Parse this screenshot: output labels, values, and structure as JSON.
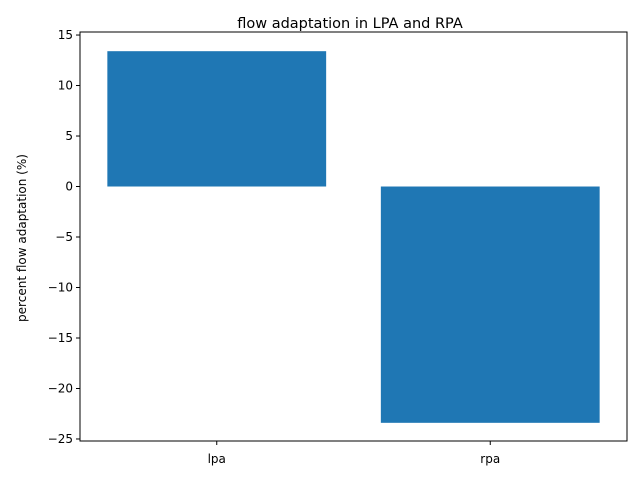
{
  "chart_data": {
    "type": "bar",
    "title": "flow adaptation in LPA and RPA",
    "xlabel": "",
    "ylabel": "percent flow adaptation (%)",
    "categories": [
      "lpa",
      "rpa"
    ],
    "values": [
      13.4,
      -23.4
    ],
    "ylim": [
      -25.2,
      15.3
    ],
    "yticks": [
      -25,
      -20,
      -15,
      -10,
      -5,
      0,
      5,
      10,
      15
    ],
    "ytick_labels": [
      "−25",
      "−20",
      "−15",
      "−10",
      "−5",
      "0",
      "5",
      "10",
      "15"
    ],
    "bar_color": "#1f77b4",
    "grid": false
  }
}
